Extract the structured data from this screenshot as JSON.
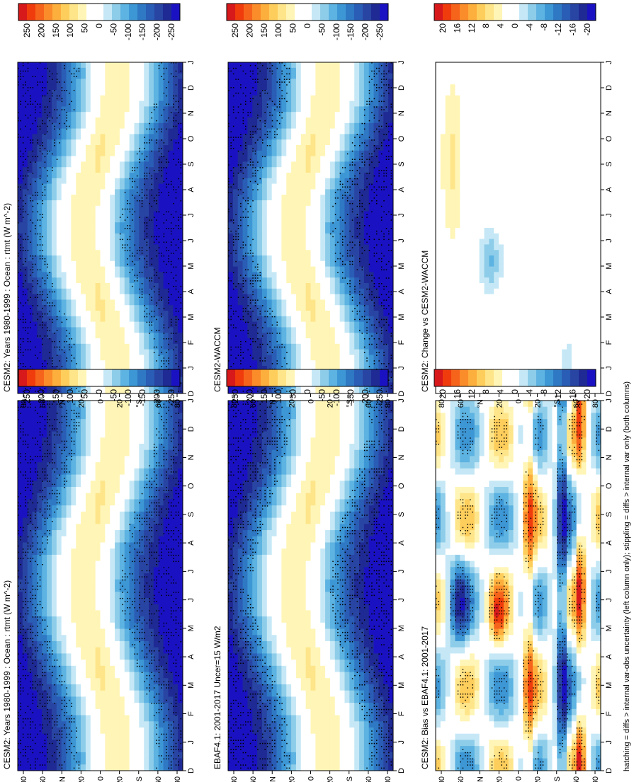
{
  "figure": {
    "footnote": "hatching = diffs > internal var-obs uncertainty (left column only); stippling = diffs > internal var only (both columns)",
    "rotation": "90deg-counterclockwise"
  },
  "axes": {
    "month_labels": [
      "D",
      "J",
      "F",
      "M",
      "A",
      "M",
      "J",
      "J",
      "A",
      "S",
      "O",
      "N",
      "D",
      "J"
    ],
    "lat_labels": [
      "80",
      "60",
      "°N",
      "20",
      "0",
      "20",
      "°S",
      "60",
      "80"
    ]
  },
  "colors": {
    "diverging_20": [
      "#d7191c",
      "#f03c0c",
      "#f6641c",
      "#fb8c2a",
      "#fdaf3d",
      "#fece5c",
      "#fee58a",
      "#fff5b6",
      "#ffffff",
      "#ffffff",
      "#c6e8f6",
      "#8ecde9",
      "#5db3e1",
      "#3e97d5",
      "#2f78c4",
      "#2a5db5",
      "#2945a3",
      "#1f2a94",
      "#1a12c2"
    ]
  },
  "colorbars": {
    "full": [
      "250",
      "200",
      "150",
      "100",
      "50",
      "0",
      "-50",
      "-100",
      "-150",
      "-200",
      "-250"
    ],
    "diff": [
      "20",
      "16",
      "12",
      "8",
      "4",
      "0",
      "-4",
      "-8",
      "-12",
      "-16",
      "-20"
    ]
  },
  "chart_data": [
    {
      "type": "heatmap",
      "title": "CESM2: Years 1980-1999 : Ocean : rtmt (W m^-2)",
      "x_months": [
        "D",
        "J",
        "F",
        "M",
        "A",
        "M",
        "J",
        "J",
        "A",
        "S",
        "O",
        "N",
        "D",
        "J"
      ],
      "y_lat_range": [
        -90,
        90
      ],
      "colorbar_range": [
        -250,
        250
      ],
      "pattern": "annual TOA net radiation: positive (+150..+200) in summer hemisphere subtropics, negative (-150..-220) at winter high latitudes"
    },
    {
      "type": "heatmap",
      "title": "EBAF4.1: 2001-2017 Uncer=15 W/m2",
      "x_months": [
        "D",
        "J",
        "F",
        "M",
        "A",
        "M",
        "J",
        "J",
        "A",
        "S",
        "O",
        "N",
        "D",
        "J"
      ],
      "y_lat_range": [
        -90,
        90
      ],
      "colorbar_range": [
        -250,
        250
      ]
    },
    {
      "type": "heatmap",
      "title": "CESM2: Bias vs EBAF4.1: 2001-2017",
      "x_months": [
        "D",
        "J",
        "F",
        "M",
        "A",
        "M",
        "J",
        "J",
        "A",
        "S",
        "O",
        "N",
        "D",
        "J"
      ],
      "y_lat_range": [
        -90,
        90
      ],
      "colorbar_range": [
        -20,
        20
      ]
    },
    {
      "type": "heatmap",
      "title": "CESM2: Years 1980-1999 : Ocean : rtmt (W m^-2)",
      "x_months": [
        "D",
        "J",
        "F",
        "M",
        "A",
        "M",
        "J",
        "J",
        "A",
        "S",
        "O",
        "N",
        "D",
        "J"
      ],
      "y_lat_range": [
        -90,
        90
      ],
      "colorbar_range": [
        -250,
        250
      ]
    },
    {
      "type": "heatmap",
      "title": "CESM2-WACCM",
      "x_months": [
        "D",
        "J",
        "F",
        "M",
        "A",
        "M",
        "J",
        "J",
        "A",
        "S",
        "O",
        "N",
        "D",
        "J"
      ],
      "y_lat_range": [
        -90,
        90
      ],
      "colorbar_range": [
        -250,
        250
      ]
    },
    {
      "type": "heatmap",
      "title": "CESM2: Change vs CESM2-WACCM",
      "x_months": [
        "D",
        "J",
        "F",
        "M",
        "A",
        "M",
        "J",
        "J",
        "A",
        "S",
        "O",
        "N",
        "D",
        "J"
      ],
      "y_lat_range": [
        -90,
        90
      ],
      "colorbar_range": [
        -20,
        20
      ]
    }
  ]
}
